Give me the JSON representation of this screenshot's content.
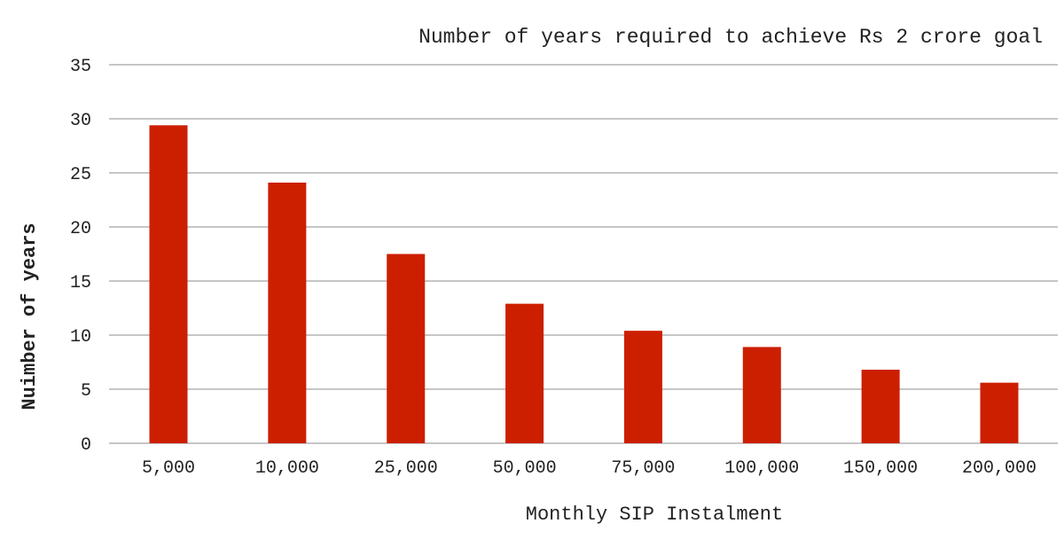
{
  "chart_data": {
    "type": "bar",
    "title": "Number of years required to achieve Rs 2 crore goal",
    "xlabel": "Monthly SIP Instalment",
    "ylabel": "Nuimber of years",
    "categories": [
      "5,000",
      "10,000",
      "25,000",
      "50,000",
      "75,000",
      "100,000",
      "150,000",
      "200,000"
    ],
    "values": [
      29.4,
      24.1,
      17.5,
      12.9,
      10.4,
      8.9,
      6.8,
      5.6
    ],
    "ylim": [
      0,
      35
    ],
    "yticks": [
      0,
      5,
      10,
      15,
      20,
      25,
      30,
      35
    ],
    "bar_color": "#cc1f00",
    "grid_color": "#b3b3b3",
    "grid": true,
    "legend": "none"
  }
}
